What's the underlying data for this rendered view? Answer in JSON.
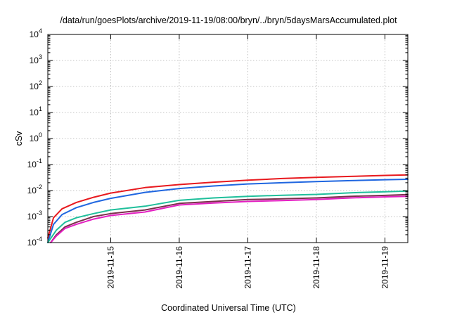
{
  "chart_data": {
    "type": "line",
    "title": "/data/run/goesPlots/archive/2019-11-19/08:00/bryn/../bryn/5daysMarsAccumulated.plot",
    "xlabel": "Coordinated Universal Time (UTC)",
    "ylabel": "cSv",
    "yscale": "log",
    "ylim": [
      0.0001,
      10000
    ],
    "xlim": [
      "2019-11-14T02:00",
      "2019-11-19T08:00"
    ],
    "grid": true,
    "legend": "none",
    "y_ticks": [
      {
        "base": "10",
        "exp": "-4"
      },
      {
        "base": "10",
        "exp": "-3"
      },
      {
        "base": "10",
        "exp": "-2"
      },
      {
        "base": "10",
        "exp": "-1"
      },
      {
        "base": "10",
        "exp": "0"
      },
      {
        "base": "10",
        "exp": "1"
      },
      {
        "base": "10",
        "exp": "2"
      },
      {
        "base": "10",
        "exp": "3"
      },
      {
        "base": "10",
        "exp": "4"
      }
    ],
    "x_ticks": [
      "2019-11-15",
      "2019-11-16",
      "2019-11-17",
      "2019-11-18",
      "2019-11-19"
    ],
    "series": [
      {
        "color": "#e8191e",
        "x": [
          "2019-11-14T02:00",
          "2019-11-14T04:00",
          "2019-11-14T07:00",
          "2019-11-14T12:00",
          "2019-11-14T18:00",
          "2019-11-15T00:00",
          "2019-11-15T12:00",
          "2019-11-16T00:00",
          "2019-11-16T12:00",
          "2019-11-17T00:00",
          "2019-11-17T12:00",
          "2019-11-18T00:00",
          "2019-11-18T12:00",
          "2019-11-19T00:00",
          "2019-11-19T08:00"
        ],
        "y": [
          0.00015,
          0.0009,
          0.002,
          0.0035,
          0.0055,
          0.008,
          0.013,
          0.017,
          0.021,
          0.025,
          0.029,
          0.032,
          0.035,
          0.038,
          0.04
        ]
      },
      {
        "color": "#1f66e0",
        "x": [
          "2019-11-14T02:00",
          "2019-11-14T04:00",
          "2019-11-14T07:00",
          "2019-11-14T12:00",
          "2019-11-14T18:00",
          "2019-11-15T00:00",
          "2019-11-15T12:00",
          "2019-11-16T00:00",
          "2019-11-16T12:00",
          "2019-11-17T00:00",
          "2019-11-17T12:00",
          "2019-11-18T00:00",
          "2019-11-18T12:00",
          "2019-11-19T00:00",
          "2019-11-19T08:00"
        ],
        "y": [
          0.0001,
          0.0005,
          0.0012,
          0.0022,
          0.0035,
          0.005,
          0.0085,
          0.012,
          0.015,
          0.018,
          0.02,
          0.022,
          0.024,
          0.026,
          0.027
        ]
      },
      {
        "color": "#1fbf9b",
        "x": [
          "2019-11-14T02:00",
          "2019-11-14T05:00",
          "2019-11-14T08:00",
          "2019-11-14T12:00",
          "2019-11-14T18:00",
          "2019-11-15T00:00",
          "2019-11-15T12:00",
          "2019-11-16T00:00",
          "2019-11-16T12:00",
          "2019-11-17T00:00",
          "2019-11-17T12:00",
          "2019-11-18T00:00",
          "2019-11-18T12:00",
          "2019-11-19T00:00",
          "2019-11-19T08:00"
        ],
        "y": [
          0.0001,
          0.0003,
          0.0006,
          0.0009,
          0.0013,
          0.0018,
          0.0025,
          0.0042,
          0.0052,
          0.006,
          0.0066,
          0.0071,
          0.0082,
          0.009,
          0.0095
        ]
      },
      {
        "color": "#7a2f4a",
        "x": [
          "2019-11-14T03:00",
          "2019-11-14T05:00",
          "2019-11-14T08:00",
          "2019-11-14T12:00",
          "2019-11-14T18:00",
          "2019-11-15T00:00",
          "2019-11-15T12:00",
          "2019-11-16T00:00",
          "2019-11-16T12:00",
          "2019-11-17T00:00",
          "2019-11-17T12:00",
          "2019-11-18T00:00",
          "2019-11-18T12:00",
          "2019-11-19T00:00",
          "2019-11-19T08:00"
        ],
        "y": [
          0.0001,
          0.0002,
          0.0004,
          0.0006,
          0.001,
          0.0013,
          0.0018,
          0.0032,
          0.0038,
          0.0045,
          0.0048,
          0.0052,
          0.006,
          0.0065,
          0.007
        ]
      },
      {
        "color": "#e41fc2",
        "x": [
          "2019-11-14T03:00",
          "2019-11-14T05:00",
          "2019-11-14T08:00",
          "2019-11-14T12:00",
          "2019-11-14T18:00",
          "2019-11-15T00:00",
          "2019-11-15T12:00",
          "2019-11-16T00:00",
          "2019-11-16T12:00",
          "2019-11-17T00:00",
          "2019-11-17T12:00",
          "2019-11-18T00:00",
          "2019-11-18T12:00",
          "2019-11-19T00:00",
          "2019-11-19T08:00"
        ],
        "y": [
          0.0001,
          0.00018,
          0.00035,
          0.0005,
          0.0008,
          0.0011,
          0.0015,
          0.0028,
          0.0033,
          0.0038,
          0.0041,
          0.0045,
          0.0052,
          0.0057,
          0.006
        ]
      }
    ]
  }
}
